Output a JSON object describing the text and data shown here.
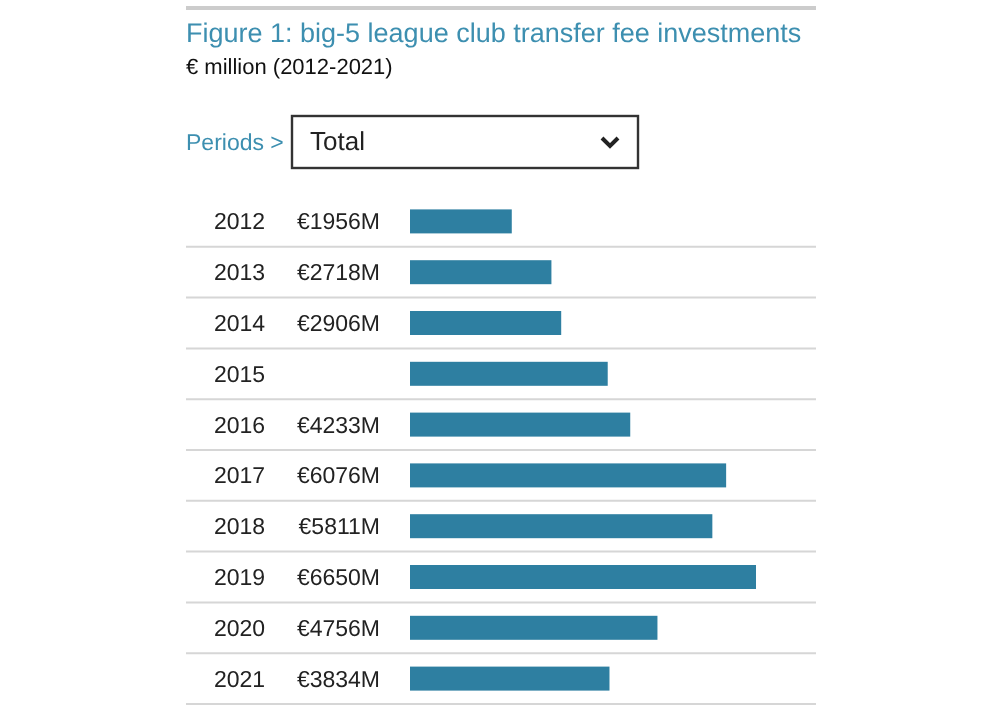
{
  "chart_data": {
    "type": "bar",
    "orientation": "horizontal",
    "title": "Figure 1: big-5 league club transfer fee investments",
    "subtitle": "€ million (2012-2021)",
    "annotations": [
      "Periods >",
      "Total"
    ],
    "categories": [
      "2012",
      "2013",
      "2014",
      "2015",
      "2016",
      "2017",
      "2018",
      "2019",
      "2020",
      "2021"
    ],
    "values": [
      1956,
      2718,
      2906,
      3800,
      4233,
      6076,
      5811,
      6650,
      4756,
      3834
    ],
    "value_labels": [
      "€1956M",
      "€2718M",
      "€2906M",
      null,
      "€4233M",
      "€6076M",
      "€5811M",
      "€6650M",
      "€4756M",
      "€3834M"
    ],
    "color": "#2e7fa1"
  }
}
